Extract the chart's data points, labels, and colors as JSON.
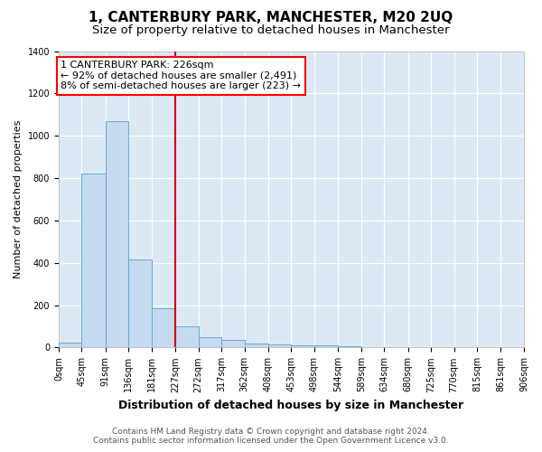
{
  "title": "1, CANTERBURY PARK, MANCHESTER, M20 2UQ",
  "subtitle": "Size of property relative to detached houses in Manchester",
  "xlabel": "Distribution of detached houses by size in Manchester",
  "ylabel": "Number of detached properties",
  "footer_line1": "Contains HM Land Registry data © Crown copyright and database right 2024.",
  "footer_line2": "Contains public sector information licensed under the Open Government Licence v3.0.",
  "annotation_line1": "1 CANTERBURY PARK: 226sqm",
  "annotation_line2": "← 92% of detached houses are smaller (2,491)",
  "annotation_line3": "8% of semi-detached houses are larger (223) →",
  "bar_color": "#c5d9ef",
  "bar_edge_color": "#6aaad4",
  "redline_color": "#cc0000",
  "redline_x": 227,
  "bins": [
    0,
    45,
    91,
    136,
    181,
    227,
    272,
    317,
    362,
    408,
    453,
    498,
    544,
    589,
    634,
    680,
    725,
    770,
    815,
    861,
    906
  ],
  "counts": [
    25,
    820,
    1070,
    415,
    185,
    100,
    50,
    35,
    20,
    15,
    10,
    10,
    5,
    0,
    0,
    0,
    0,
    0,
    0,
    0
  ],
  "ylim": [
    0,
    1400
  ],
  "yticks": [
    0,
    200,
    400,
    600,
    800,
    1000,
    1200,
    1400
  ],
  "figure_bg_color": "#ffffff",
  "plot_bg_color": "#dce9f5",
  "grid_color": "#ffffff",
  "title_fontsize": 11,
  "subtitle_fontsize": 9.5,
  "annotation_fontsize": 8,
  "xlabel_fontsize": 9,
  "ylabel_fontsize": 8,
  "tick_fontsize": 7,
  "footer_fontsize": 6.5
}
